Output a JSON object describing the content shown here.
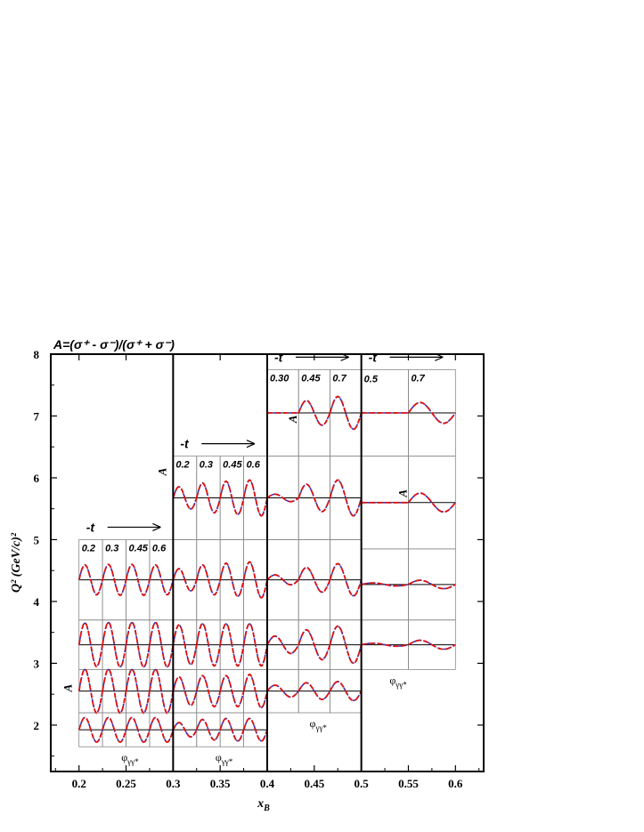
{
  "chart_data": {
    "type": "line",
    "title": "A=(σ⁺ - σ⁻)/(σ⁺ + σ⁻)",
    "xlabel": "x",
    "xlabel_sub": "B",
    "ylabel": "Q² (GeV/c)²",
    "xlim": [
      0.17,
      0.63
    ],
    "ylim": [
      1.25,
      8.0
    ],
    "xticks": [
      0.2,
      0.25,
      0.3,
      0.35,
      0.4,
      0.45,
      0.5,
      0.55,
      0.6
    ],
    "xtick_labels": [
      "0.2",
      "0.25",
      "0.3",
      "0.35",
      "0.4",
      "0.45",
      "0.5",
      "0.55",
      "0.6"
    ],
    "yticks": [
      2,
      3,
      4,
      5,
      6,
      7,
      8
    ],
    "ytick_labels": [
      "2",
      "3",
      "4",
      "5",
      "6",
      "7",
      "8"
    ],
    "bin_boundaries_x": [
      0.3,
      0.4,
      0.5
    ],
    "t_label": "-t",
    "inset_y_label": "A",
    "phi_label": "φ",
    "phi_sub": "γγ*",
    "series_colors": {
      "model_1": "#dd1111",
      "model_2": "#3333bb"
    },
    "panel_groups": [
      {
        "xB_range": [
          0.2,
          0.3
        ],
        "t_values": [
          "0.2",
          "0.3",
          "0.45",
          "0.6"
        ],
        "rows": [
          {
            "Q2_range": [
              1.65,
              2.2
            ],
            "amplitudes": [
              0.6,
              0.6,
              0.6,
              0.6
            ]
          },
          {
            "Q2_range": [
              2.2,
              2.9
            ],
            "amplitudes": [
              0.92,
              0.92,
              0.92,
              0.92
            ]
          },
          {
            "Q2_range": [
              2.9,
              3.7
            ],
            "amplitudes": [
              0.88,
              0.9,
              0.9,
              0.9
            ]
          },
          {
            "Q2_range": [
              3.7,
              5.0
            ],
            "amplitudes": [
              0.6,
              0.62,
              0.62,
              0.6
            ]
          }
        ]
      },
      {
        "xB_range": [
          0.3,
          0.4
        ],
        "t_values": [
          "0.2",
          "0.3",
          "0.45",
          "0.6"
        ],
        "rows": [
          {
            "Q2_range": [
              1.65,
              2.2
            ],
            "amplitudes": [
              0.35,
              0.5,
              0.55,
              0.55
            ]
          },
          {
            "Q2_range": [
              2.2,
              2.9
            ],
            "amplitudes": [
              0.6,
              0.65,
              0.65,
              0.7
            ]
          },
          {
            "Q2_range": [
              2.9,
              3.7
            ],
            "amplitudes": [
              0.8,
              0.85,
              0.85,
              0.85
            ]
          },
          {
            "Q2_range": [
              3.7,
              5.0
            ],
            "amplitudes": [
              0.45,
              0.6,
              0.67,
              0.72
            ]
          },
          {
            "Q2_range": [
              5.0,
              6.35
            ],
            "amplitudes": [
              0.45,
              0.6,
              0.67,
              0.72
            ]
          }
        ]
      },
      {
        "xB_range": [
          0.4,
          0.5
        ],
        "t_values": [
          "0.30",
          "0.45",
          "0.7"
        ],
        "rows": [
          {
            "Q2_range": [
              2.2,
              2.9
            ],
            "amplitudes": [
              0.25,
              0.35,
              0.4
            ]
          },
          {
            "Q2_range": [
              2.9,
              3.7
            ],
            "amplitudes": [
              0.35,
              0.6,
              0.75
            ]
          },
          {
            "Q2_range": [
              3.7,
              5.0
            ],
            "amplitudes": [
              0.2,
              0.5,
              0.65
            ]
          },
          {
            "Q2_range": [
              5.0,
              6.35
            ],
            "amplitudes": [
              0.15,
              0.55,
              0.72
            ]
          },
          {
            "Q2_range": [
              6.35,
              7.75
            ],
            "amplitudes": [
              0.0,
              0.5,
              0.66
            ]
          }
        ]
      },
      {
        "xB_range": [
          0.5,
          0.6
        ],
        "t_values": [
          "0.5",
          "0.7"
        ],
        "rows": [
          {
            "Q2_range": [
              2.9,
              3.7
            ],
            "amplitudes": [
              0.06,
              0.18
            ]
          },
          {
            "Q2_range": [
              3.7,
              4.85
            ],
            "amplitudes": [
              0.06,
              0.17
            ]
          },
          {
            "Q2_range": [
              4.85,
              6.35
            ],
            "amplitudes": [
              0.0,
              0.38
            ]
          },
          {
            "Q2_range": [
              6.35,
              7.75
            ],
            "amplitudes": [
              0.0,
              0.42
            ]
          }
        ]
      }
    ]
  }
}
